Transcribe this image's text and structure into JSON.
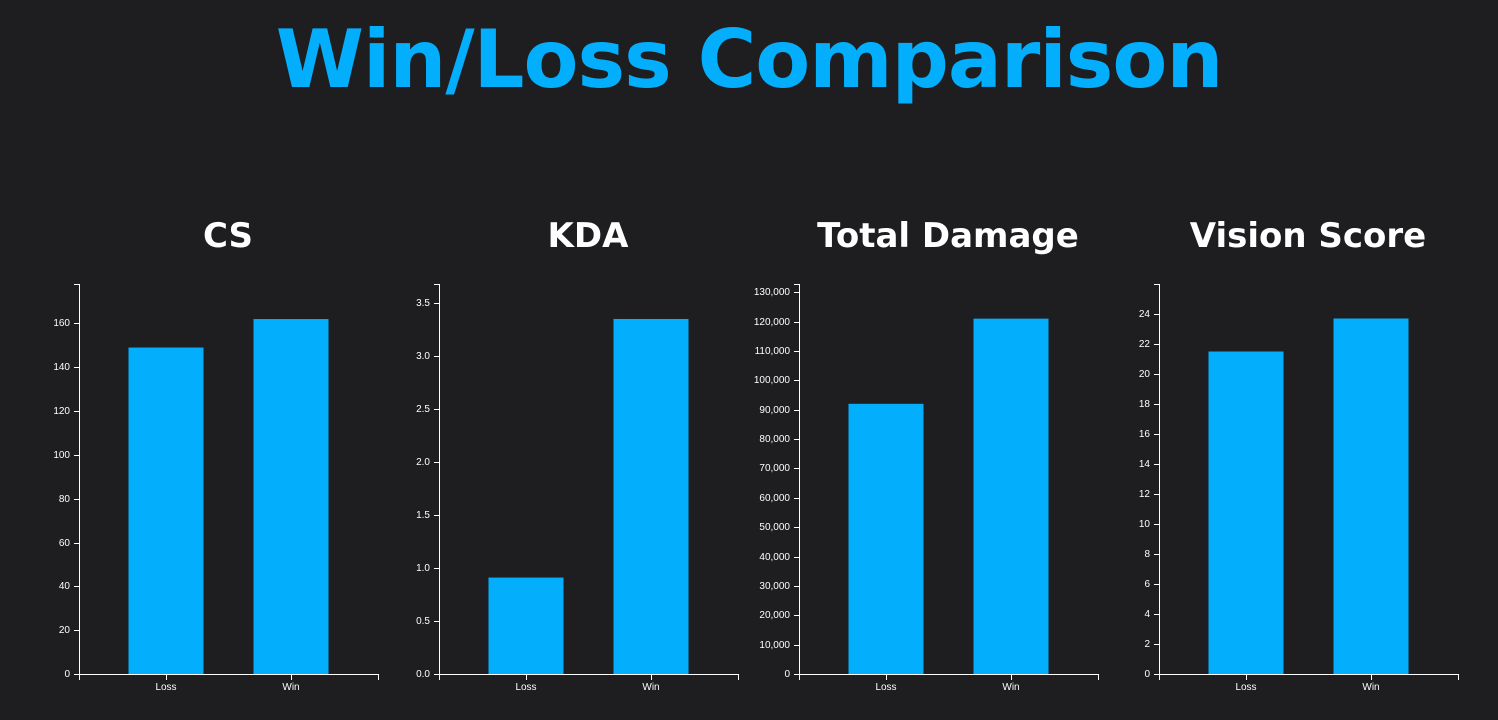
{
  "title": "Win/Loss Comparison",
  "colors": {
    "background": "#1e1e21",
    "bar": "#03aefd",
    "title": "#03aefd",
    "text": "#ffffff",
    "axis": "#ffffff"
  },
  "chart_data": [
    {
      "type": "bar",
      "title": "CS",
      "categories": [
        "Loss",
        "Win"
      ],
      "values": [
        149,
        162
      ],
      "ylim": [
        0,
        178
      ],
      "yticks": [
        0,
        20,
        40,
        60,
        80,
        100,
        120,
        140,
        160
      ],
      "grid": false,
      "xlabel": "",
      "ylabel": ""
    },
    {
      "type": "bar",
      "title": "KDA",
      "categories": [
        "Loss",
        "Win"
      ],
      "values": [
        0.91,
        3.35
      ],
      "ylim": [
        0,
        3.68
      ],
      "yticks": [
        "0.0",
        "0.5",
        "1.0",
        "1.5",
        "2.0",
        "2.5",
        "3.0",
        "3.5"
      ],
      "grid": false,
      "xlabel": "",
      "ylabel": ""
    },
    {
      "type": "bar",
      "title": "Total Damage",
      "categories": [
        "Loss",
        "Win"
      ],
      "values": [
        92000,
        121000
      ],
      "ylim": [
        0,
        132800
      ],
      "yticks": [
        "0",
        "10,000",
        "20,000",
        "30,000",
        "40,000",
        "50,000",
        "60,000",
        "70,000",
        "80,000",
        "90,000",
        "100,000",
        "110,000",
        "120,000",
        "130,000"
      ],
      "grid": false,
      "xlabel": "",
      "ylabel": ""
    },
    {
      "type": "bar",
      "title": "Vision Score",
      "categories": [
        "Loss",
        "Win"
      ],
      "values": [
        21.5,
        23.7
      ],
      "ylim": [
        0,
        26
      ],
      "yticks": [
        0,
        2,
        4,
        6,
        8,
        10,
        12,
        14,
        16,
        18,
        20,
        22,
        24
      ],
      "grid": false,
      "xlabel": "",
      "ylabel": ""
    }
  ]
}
